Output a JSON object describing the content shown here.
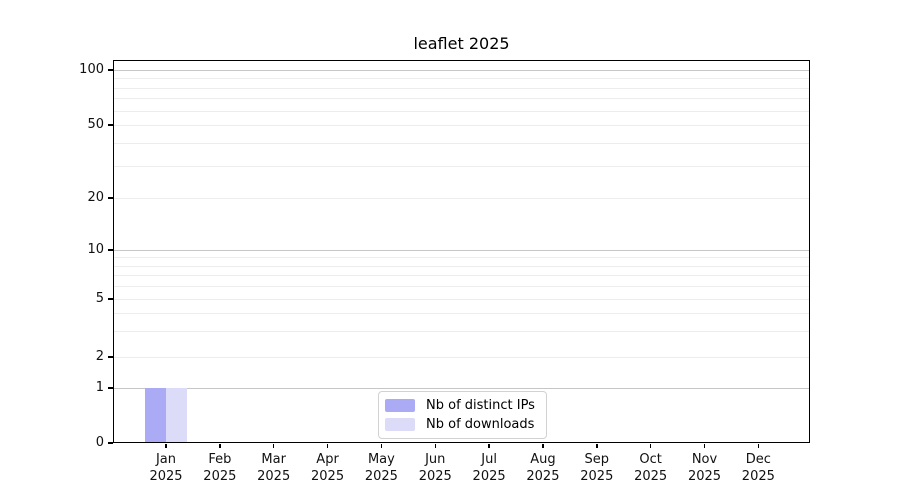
{
  "chart_data": {
    "type": "bar",
    "title": "leaflet 2025",
    "categories": [
      "Jan",
      "Feb",
      "Mar",
      "Apr",
      "May",
      "Jun",
      "Jul",
      "Aug",
      "Sep",
      "Oct",
      "Nov",
      "Dec"
    ],
    "category_year": "2025",
    "series": [
      {
        "name": "Nb of distinct IPs",
        "color": "#aaaaf5",
        "values": [
          1,
          0,
          0,
          0,
          0,
          0,
          0,
          0,
          0,
          0,
          0,
          0
        ]
      },
      {
        "name": "Nb of downloads",
        "color": "#dcdcf8",
        "values": [
          1,
          0,
          0,
          0,
          0,
          0,
          0,
          0,
          0,
          0,
          0,
          0
        ]
      }
    ],
    "y_ticks": [
      0,
      1,
      2,
      5,
      10,
      20,
      50,
      100
    ],
    "ylim": [
      0,
      100
    ],
    "scale": "log-like",
    "grid": "horizontal",
    "grid_major_values": [
      1,
      10,
      100
    ],
    "grid_minor_values": [
      2,
      3,
      4,
      5,
      6,
      7,
      8,
      9,
      20,
      30,
      40,
      50,
      60,
      70,
      80,
      90
    ],
    "legend_position": "bottom-center",
    "colors": {
      "grid_major": "#c6c6c6",
      "grid_minor": "#ededed",
      "axis": "#000000",
      "background": "#ffffff"
    }
  }
}
